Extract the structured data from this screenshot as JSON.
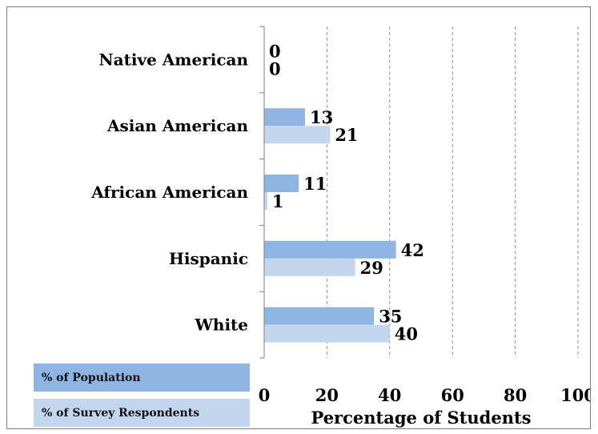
{
  "chart_data": {
    "type": "bar",
    "orientation": "horizontal",
    "title": "",
    "xlabel": "Percentage of Students",
    "ylabel": "",
    "xlim": [
      0,
      100
    ],
    "x_ticks": [
      "0",
      "20",
      "40",
      "60",
      "80",
      "100"
    ],
    "grid": "vertical dashed",
    "categories": [
      "Native American",
      "Asian American",
      "African American",
      "Hispanic",
      "White"
    ],
    "series": [
      {
        "name": "% of Population",
        "values": [
          0,
          13,
          11,
          42,
          35
        ],
        "color": "#8eb4e3"
      },
      {
        "name": "% of Survey Respondents",
        "values": [
          0,
          21,
          1,
          29,
          40
        ],
        "color": "#c3d6ee"
      }
    ],
    "legend": {
      "placement": "bottom-left",
      "colors": [
        "#8eb4e3",
        "#c3d6ee"
      ]
    }
  }
}
